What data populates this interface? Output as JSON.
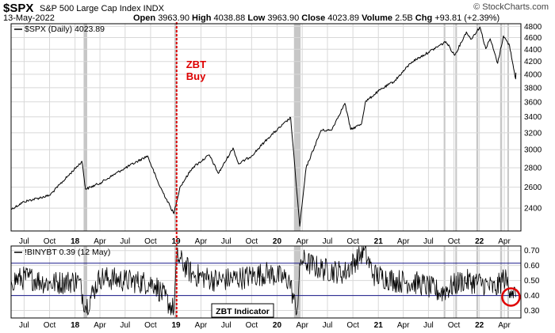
{
  "header": {
    "symbol": "$SPX",
    "description": "S&P 500 Large Cap Index  INDX",
    "date": "13-May-2022",
    "open_label": "Open",
    "open": "3963.90",
    "high_label": "High",
    "high": "4038.88",
    "low_label": "Low",
    "low": "3963.90",
    "close_label": "Close",
    "close": "4023.89",
    "volume_label": "Volume",
    "volume": "2.5B",
    "chg_label": "Chg",
    "chg": "+93.81 (+2.39%)",
    "credit": "© StockCharts.com"
  },
  "chart_data": [
    {
      "type": "line",
      "legend": "$SPX (Daily) 4023.89",
      "yscale": "log",
      "ylim": [
        2200,
        4850
      ],
      "yticks": [
        2400,
        2600,
        2800,
        3000,
        3200,
        3400,
        3600,
        3800,
        4000,
        4200,
        4400,
        4600,
        4800
      ],
      "xlim": [
        "2017-05-15",
        "2022-05-31"
      ],
      "x": [
        "2017-05-15",
        "2017-07-01",
        "2017-10-01",
        "2018-01-26",
        "2018-02-08",
        "2018-04-01",
        "2018-06-15",
        "2018-09-20",
        "2018-10-29",
        "2018-12-24",
        "2019-01-15",
        "2019-03-01",
        "2019-05-01",
        "2019-06-03",
        "2019-07-26",
        "2019-08-15",
        "2019-10-01",
        "2019-12-01",
        "2020-02-19",
        "2020-03-23",
        "2020-04-15",
        "2020-06-08",
        "2020-07-15",
        "2020-09-02",
        "2020-09-23",
        "2020-11-01",
        "2020-11-15",
        "2021-01-01",
        "2021-03-01",
        "2021-05-01",
        "2021-07-01",
        "2021-09-02",
        "2021-10-04",
        "2021-11-15",
        "2021-12-01",
        "2022-01-03",
        "2022-01-24",
        "2022-02-09",
        "2022-03-08",
        "2022-03-29",
        "2022-04-20",
        "2022-05-12",
        "2022-05-13"
      ],
      "y": [
        2390,
        2460,
        2520,
        2870,
        2580,
        2640,
        2770,
        2930,
        2640,
        2350,
        2600,
        2800,
        2940,
        2740,
        3020,
        2840,
        2930,
        3140,
        3390,
        2240,
        2800,
        3230,
        3230,
        3580,
        3240,
        3310,
        3600,
        3750,
        3900,
        4190,
        4350,
        4530,
        4300,
        4700,
        4570,
        4790,
        4410,
        4580,
        4170,
        4630,
        4460,
        3930,
        4023.89
      ],
      "annotation": {
        "x": "2019-01-03",
        "label_line1": "ZBT",
        "label_line2": "Buy"
      },
      "shaded_periods": [
        [
          "2018-02-01",
          "2018-02-14"
        ],
        [
          "2018-12-26",
          "2019-01-04"
        ],
        [
          "2020-03-02",
          "2020-03-26"
        ],
        [
          "2021-08-25",
          "2021-08-31"
        ],
        [
          "2021-10-06",
          "2021-10-12"
        ],
        [
          "2021-12-21",
          "2021-12-28"
        ],
        [
          "2022-03-17",
          "2022-03-24"
        ],
        [
          "2022-04-12",
          "2022-04-15"
        ]
      ]
    },
    {
      "type": "line",
      "legend": "!BINYBT 0.39 (12 May)",
      "ylim": [
        0.25,
        0.73
      ],
      "yticks": [
        0.3,
        0.4,
        0.5,
        0.6,
        0.7
      ],
      "reference_lines": [
        0.615,
        0.4
      ],
      "x": [
        "2017-05-15",
        "2017-07-15",
        "2017-10-01",
        "2018-01-15",
        "2018-02-09",
        "2018-04-01",
        "2018-07-01",
        "2018-10-15",
        "2018-12-24",
        "2019-01-04",
        "2019-03-01",
        "2019-06-01",
        "2019-09-01",
        "2019-12-01",
        "2020-02-15",
        "2020-03-12",
        "2020-03-27",
        "2020-06-01",
        "2020-09-01",
        "2020-11-10",
        "2020-12-15",
        "2021-03-01",
        "2021-06-01",
        "2021-08-15",
        "2021-11-01",
        "2022-01-15",
        "2022-03-01",
        "2022-03-30",
        "2022-05-01",
        "2022-05-12"
      ],
      "y": [
        0.5,
        0.52,
        0.48,
        0.5,
        0.32,
        0.52,
        0.5,
        0.48,
        0.3,
        0.66,
        0.54,
        0.5,
        0.52,
        0.55,
        0.5,
        0.28,
        0.64,
        0.58,
        0.55,
        0.7,
        0.54,
        0.5,
        0.48,
        0.42,
        0.5,
        0.48,
        0.44,
        0.52,
        0.43,
        0.39
      ],
      "label": "ZBT Indicator",
      "highlight": {
        "x": "2022-05-12",
        "y": 0.39,
        "shape": "circle"
      }
    }
  ],
  "x_axis": {
    "ticks": [
      {
        "date": "2017-07-01",
        "label": "Jul"
      },
      {
        "date": "2017-10-01",
        "label": "Oct"
      },
      {
        "date": "2018-01-01",
        "label": "18"
      },
      {
        "date": "2018-04-01",
        "label": "Apr"
      },
      {
        "date": "2018-07-01",
        "label": "Jul"
      },
      {
        "date": "2018-10-01",
        "label": "Oct"
      },
      {
        "date": "2019-01-01",
        "label": "19"
      },
      {
        "date": "2019-04-01",
        "label": "Apr"
      },
      {
        "date": "2019-07-01",
        "label": "Jul"
      },
      {
        "date": "2019-10-01",
        "label": "Oct"
      },
      {
        "date": "2020-01-01",
        "label": "20"
      },
      {
        "date": "2020-04-01",
        "label": "Apr"
      },
      {
        "date": "2020-07-01",
        "label": "Jul"
      },
      {
        "date": "2020-10-01",
        "label": "Oct"
      },
      {
        "date": "2021-01-01",
        "label": "21"
      },
      {
        "date": "2021-04-01",
        "label": "Apr"
      },
      {
        "date": "2021-07-01",
        "label": "Jul"
      },
      {
        "date": "2021-10-01",
        "label": "Oct"
      },
      {
        "date": "2022-01-01",
        "label": "22"
      },
      {
        "date": "2022-04-01",
        "label": "Apr"
      }
    ]
  },
  "colors": {
    "price_line": "#000000",
    "grid": "#d8d8d8",
    "shade": "#bdbdbd",
    "zbt_marker": "#dd0000",
    "reference_line": "#1a1a8a",
    "circle": "#e00000"
  }
}
